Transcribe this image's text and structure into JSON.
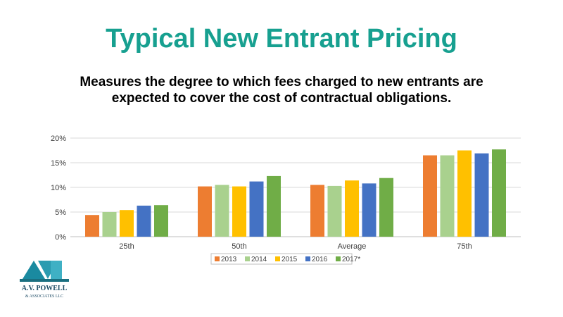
{
  "page": {
    "title": "Typical New Entrant Pricing",
    "subtitle_line1": "Measures the degree to which fees charged to new entrants are",
    "subtitle_line2": "expected to cover the cost of contractual obligations.",
    "logo": {
      "name": "A.V. POWELL",
      "sub": "& ASSOCIATES LLC"
    }
  },
  "chart_data": {
    "type": "bar",
    "categories": [
      "25th",
      "50th",
      "Average",
      "75th"
    ],
    "series": [
      {
        "name": "2013",
        "color": "#ed7d31",
        "values": [
          4.4,
          10.2,
          10.5,
          16.5
        ]
      },
      {
        "name": "2014",
        "color": "#a9d18e",
        "values": [
          5.0,
          10.5,
          10.3,
          16.5
        ]
      },
      {
        "name": "2015",
        "color": "#ffc000",
        "values": [
          5.4,
          10.2,
          11.4,
          17.5
        ]
      },
      {
        "name": "2016",
        "color": "#4472c4",
        "values": [
          6.3,
          11.2,
          10.8,
          16.9
        ]
      },
      {
        "name": "2017*",
        "color": "#70ad47",
        "values": [
          6.4,
          12.3,
          11.9,
          17.7
        ]
      }
    ],
    "ylim": [
      0,
      20
    ],
    "yticks": [
      "0%",
      "5%",
      "10%",
      "15%",
      "20%"
    ],
    "ytick_values": [
      0,
      5,
      10,
      15,
      20
    ],
    "grid": true,
    "legend_position": "bottom"
  }
}
